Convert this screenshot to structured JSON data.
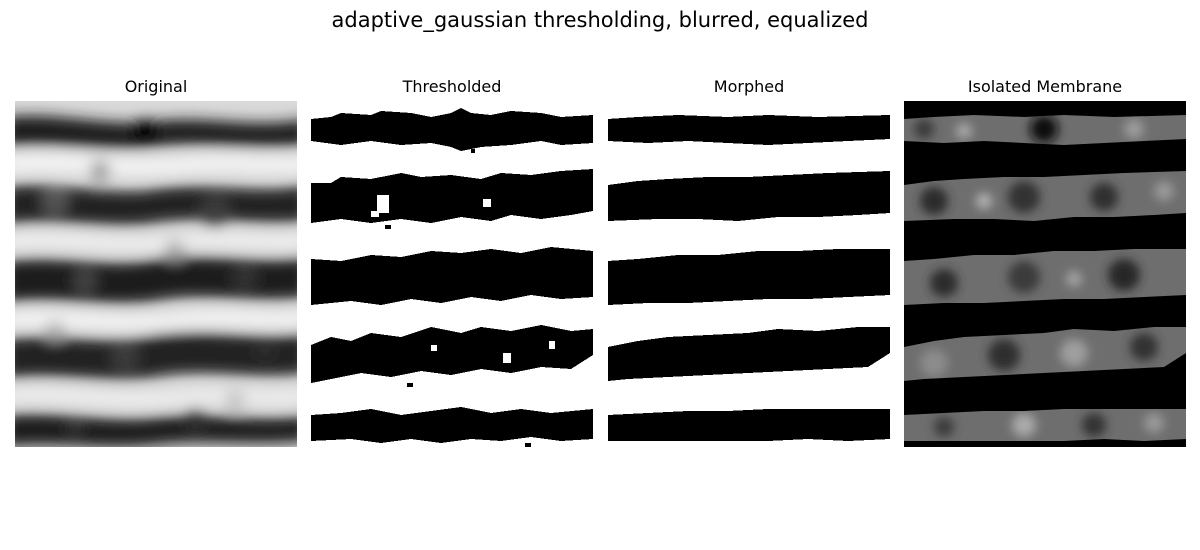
{
  "figure": {
    "suptitle": "adaptive_gaussian thresholding, blurred, equalized"
  },
  "panels": [
    {
      "title": "Original",
      "kind": "grayscale"
    },
    {
      "title": "Thresholded",
      "kind": "binary-noisy"
    },
    {
      "title": "Morphed",
      "kind": "binary-smooth"
    },
    {
      "title": "Isolated Membrane",
      "kind": "masked"
    }
  ],
  "colors": {
    "background": "#ffffff",
    "foreground": "#000000"
  }
}
